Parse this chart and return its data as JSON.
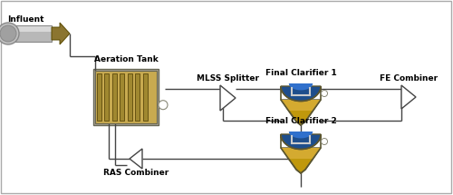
{
  "labels": {
    "influent": "Influent",
    "aeration_tank": "Aeration Tank",
    "mlss_splitter": "MLSS Splitter",
    "final_clarifier_1": "Final Clarifier 1",
    "final_clarifier_2": "Final Clarifier 2",
    "fe_combiner": "FE Combiner",
    "ras_combiner": "RAS Combiner"
  },
  "font_size": 6.5,
  "line_color": "#444444",
  "line_width": 1.0,
  "pipe_gray": "#b8b8b8",
  "pipe_dark": "#888888",
  "arrow_gold": "#8B7530",
  "arrow_dark": "#5a4a00",
  "tank_fill": "#c8aa50",
  "tank_stripe": "#4a3800",
  "tank_frame": "#666655",
  "clarifier_blue_top": "#1e4e8c",
  "clarifier_blue_mid": "#2060b0",
  "clarifier_tan": "#b89030",
  "clarifier_outline": "#5a5530",
  "clarifier_inner": "#dddddd",
  "splitter_fill": "white",
  "splitter_edge": "#444444",
  "bg": "white"
}
